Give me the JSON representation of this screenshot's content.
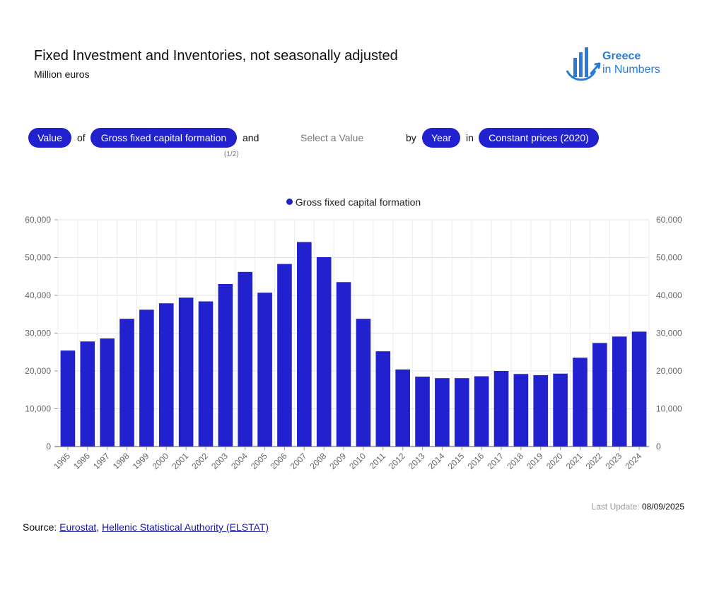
{
  "header": {
    "title": "Fixed Investment and Inventories, not seasonally adjusted",
    "subtitle": "Million euros"
  },
  "logo": {
    "line1": "Greece",
    "line2": "in Numbers",
    "color": "#2b7bd6"
  },
  "controls": {
    "measure": "Value",
    "of_word": "of",
    "series": "Gross fixed capital formation",
    "series_counter": "(1/2)",
    "and_word": "and",
    "second_placeholder": "Select a Value",
    "by_word": "by",
    "dimension": "Year",
    "in_word": "in",
    "prices": "Constant prices (2020)"
  },
  "colors": {
    "accent": "#2121cf",
    "bar": "#2121cf"
  },
  "chart_data": {
    "type": "bar",
    "title": "",
    "xlabel": "",
    "ylabel": "",
    "ylim": [
      0,
      60000
    ],
    "yticks": [
      "0",
      "10,000",
      "20,000",
      "30,000",
      "40,000",
      "50,000",
      "60,000"
    ],
    "legend": "top-center",
    "categories": [
      "1995",
      "1996",
      "1997",
      "1998",
      "1999",
      "2000",
      "2001",
      "2002",
      "2003",
      "2004",
      "2005",
      "2006",
      "2007",
      "2008",
      "2009",
      "2010",
      "2011",
      "2012",
      "2013",
      "2014",
      "2015",
      "2016",
      "2017",
      "2018",
      "2019",
      "2020",
      "2021",
      "2022",
      "2023",
      "2024"
    ],
    "series": [
      {
        "name": "Gross fixed capital formation",
        "values": [
          25400,
          27800,
          28600,
          33800,
          36200,
          37900,
          39400,
          38400,
          43000,
          46200,
          40700,
          48300,
          54100,
          50100,
          43500,
          33800,
          25200,
          20400,
          18500,
          18100,
          18100,
          18600,
          20000,
          19200,
          18900,
          19300,
          23500,
          27400,
          29100,
          30400
        ]
      }
    ]
  },
  "footer": {
    "last_update_label": "Last Update:",
    "last_update_date": "08/09/2025",
    "source_label": "Source:",
    "source_links": [
      "Eurostat",
      "Hellenic Statistical Authority (ELSTAT)"
    ],
    "separator": ","
  }
}
